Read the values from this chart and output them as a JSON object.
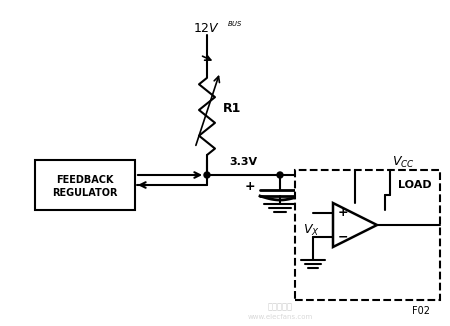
{
  "bg_color": "#ffffff",
  "line_color": "#000000",
  "title": "",
  "fig_label": "F02",
  "watermark": "电子发烧友",
  "components": {
    "resistor_label": "R1",
    "voltage_top": "12V",
    "voltage_sub": "BUS",
    "voltage_node": "3.3V",
    "vcc_label": "V",
    "vcc_sub": "CC",
    "vx_label": "V",
    "vx_sub": "X",
    "load_label": "LOAD",
    "feedback_label": "FEEDBACK\nREGULATOR",
    "cap_plus": "+",
    "op_plus": "+",
    "op_minus": "−"
  }
}
